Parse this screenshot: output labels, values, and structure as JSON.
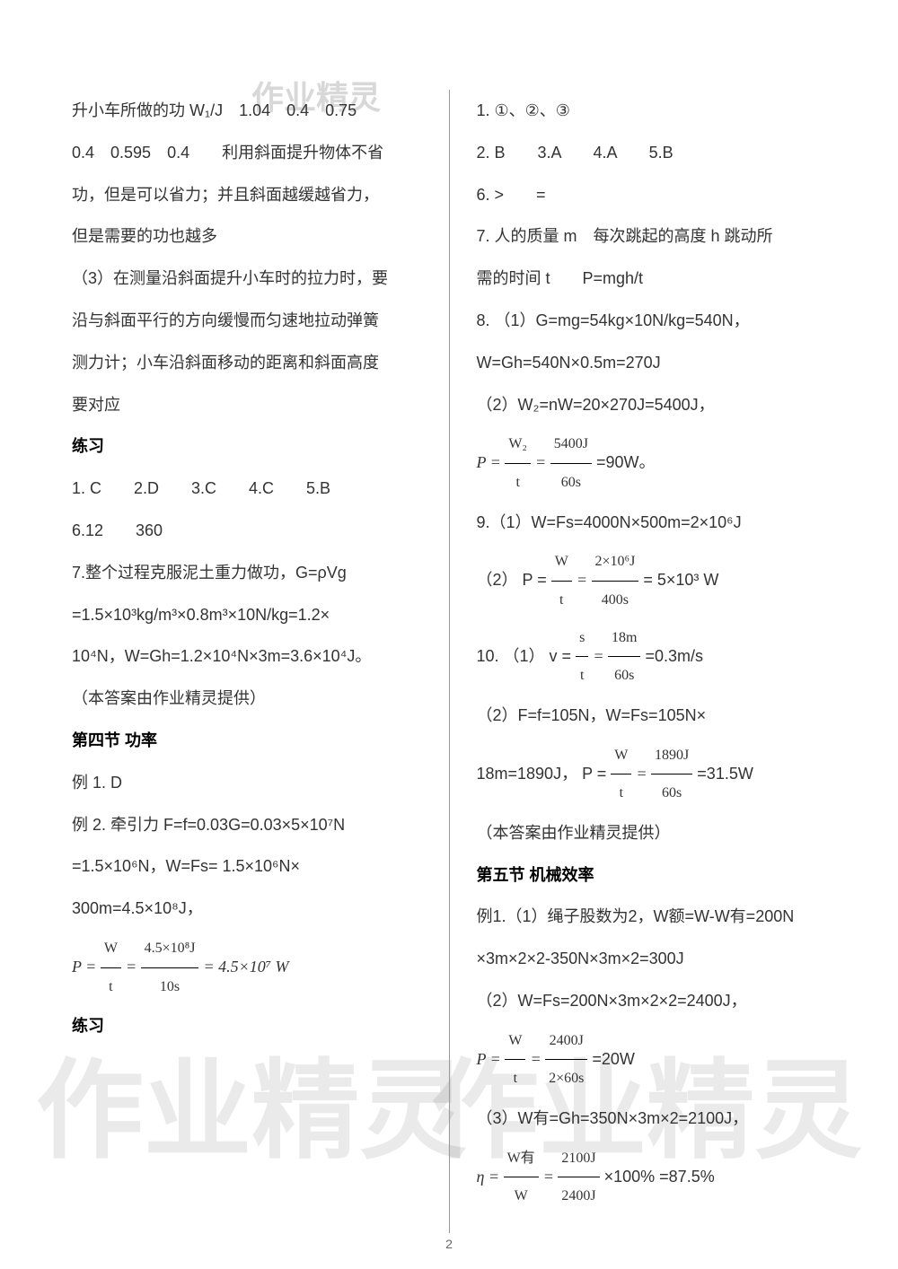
{
  "watermarks": {
    "top": "作业精灵",
    "bottom_left": "作业精灵",
    "bottom_right": "作业精灵"
  },
  "page_number": "2",
  "left_column": {
    "lines": [
      "升小车所做的功 W₁/J　1.04　0.4　0.75",
      "0.4　0.595　0.4　　利用斜面提升物体不省",
      "功，但是可以省力；并且斜面越缓越省力，",
      "但是需要的功也越多",
      "（3）在测量沿斜面提升小车时的拉力时，要",
      "沿与斜面平行的方向缓慢而匀速地拉动弹簧",
      "测力计；小车沿斜面移动的距离和斜面高度",
      "要对应"
    ],
    "heading_lianxi_1": "练习",
    "lianxi_1_lines": [
      "1. C　　2.D　　3.C　　4.C　　5.B",
      "6.12　　360",
      "7.整个过程克服泥土重力做功，G=ρVg",
      "=1.5×10³kg/m³×0.8m³×10N/kg=1.2×",
      "10⁴N，W=Gh=1.2×10⁴N×3m=3.6×10⁴J。",
      "（本答案由作业精灵提供）"
    ],
    "heading_section4": "第四节  功率",
    "section4_lines": [
      "例 1. D",
      "例 2. 牵引力 F=f=0.03G=0.03×5×10⁷N",
      "=1.5×10⁶N，W=Fs= 1.5×10⁶N×",
      "300m=4.5×10⁸J，"
    ],
    "formula_p1": {
      "prefix": "P = ",
      "frac1_num": "W",
      "frac1_den": "t",
      "mid": " = ",
      "frac2_num": "4.5×10⁸J",
      "frac2_den": "10s",
      "suffix": " = 4.5×10⁷ W"
    },
    "heading_lianxi_2": "练习"
  },
  "right_column": {
    "lines_1": [
      "1.  ①、②、③",
      "2. B　　3.A　　4.A　　5.B",
      "6. >　　=",
      "7.  人的质量 m　每次跳起的高度 h  跳动所",
      "需的时间 t　　P=mgh/t",
      "8. （1）G=mg=54kg×10N/kg=540N，",
      "W=Gh=540N×0.5m=270J",
      "（2）W₂=nW=20×270J=5400J，"
    ],
    "formula_p2": {
      "prefix": "P = ",
      "frac1_num": "W₂",
      "frac1_den": "t",
      "mid": " = ",
      "frac2_num": "5400J",
      "frac2_den": "60s",
      "suffix": " =90W。"
    },
    "line_9_1": "9.（1）W=Fs=4000N×500m=2×10⁶J",
    "formula_9_2": {
      "prefix": "（2） P = ",
      "frac1_num": "W",
      "frac1_den": "t",
      "mid": " = ",
      "frac2_num": "2×10⁶J",
      "frac2_den": "400s",
      "suffix": " = 5×10³ W"
    },
    "formula_10_1": {
      "prefix": "10. （1） v = ",
      "frac1_num": "s",
      "frac1_den": "t",
      "mid": " = ",
      "frac2_num": "18m",
      "frac2_den": "60s",
      "suffix": " =0.3m/s"
    },
    "line_10_2": "（2）F=f=105N，W=Fs=105N×",
    "formula_10_3": {
      "prefix": "18m=1890J， P = ",
      "frac1_num": "W",
      "frac1_den": "t",
      "mid": " = ",
      "frac2_num": "1890J",
      "frac2_den": "60s",
      "suffix": " =31.5W"
    },
    "line_credit": "（本答案由作业精灵提供）",
    "heading_section5": "第五节  机械效率",
    "section5_lines": [
      "例1.（1）绳子股数为2，W额=W-W有=200N",
      "×3m×2×2-350N×3m×2=300J",
      "（2）W=Fs=200N×3m×2×2=2400J，"
    ],
    "formula_s5_p": {
      "prefix": "P = ",
      "frac1_num": "W",
      "frac1_den": "t",
      "mid": " = ",
      "frac2_num": "2400J",
      "frac2_den": "2×60s",
      "suffix": " =20W"
    },
    "line_s5_3": "（3）W有=Gh=350N×3m×2=2100J，",
    "formula_s5_eta": {
      "prefix": "η = ",
      "frac1_num": "W有",
      "frac1_den": "W",
      "mid": " = ",
      "frac2_num": "2100J",
      "frac2_den": "2400J",
      "suffix": " ×100% =87.5%"
    }
  }
}
